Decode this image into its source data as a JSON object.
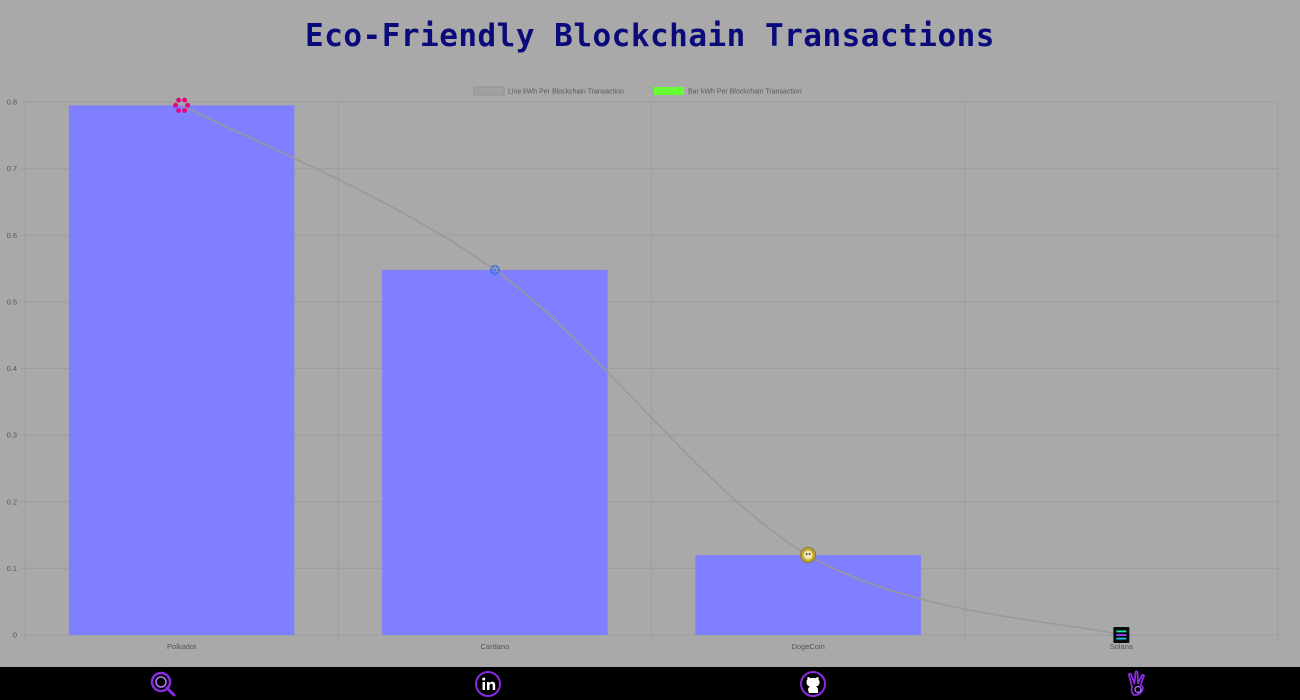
{
  "chart_data": {
    "type": "bar",
    "title": "Eco-Friendly Blockchain Transactions",
    "categories": [
      "Polkadot",
      "Cardano",
      "DogeCoin",
      "Solana"
    ],
    "series": [
      {
        "name": "Line kWh Per Blockchain Transaction",
        "type": "line",
        "values": [
          0.795,
          0.548,
          0.12,
          0.0
        ],
        "color": "#999999"
      },
      {
        "name": "Bar kWh Per Blockchain Transaction",
        "type": "bar",
        "values": [
          0.795,
          0.548,
          0.12,
          0.0
        ],
        "gradient": [
          "#66ff33",
          "#7f7fff"
        ]
      }
    ],
    "ylim": [
      0,
      0.8
    ],
    "yticks": [
      "0",
      "0.1",
      "0.2",
      "0.3",
      "0.4",
      "0.5",
      "0.6",
      "0.7",
      "0.8"
    ],
    "grid": true,
    "legend_position": "top-center",
    "point_icons": [
      "polkadot-logo-icon",
      "cardano-logo-icon",
      "dogecoin-logo-icon",
      "solana-logo-icon"
    ]
  },
  "footer": {
    "icons": [
      "portfolio-search-icon",
      "linkedin-icon",
      "github-icon",
      "peace-hand-icon"
    ],
    "accent": "#8a2be2"
  }
}
